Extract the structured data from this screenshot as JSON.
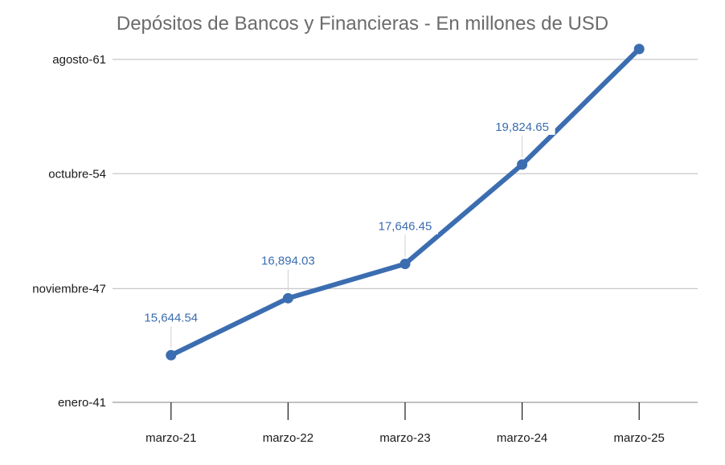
{
  "chart_data": {
    "type": "line",
    "title": "Depósitos de Bancos y Financieras - En millones de USD",
    "categories": [
      "marzo-21",
      "marzo-22",
      "marzo-23",
      "marzo-24",
      "marzo-25"
    ],
    "series": [
      {
        "values": [
          15644.54,
          16894.03,
          17646.45,
          19824.65,
          22358
        ],
        "data_labels": [
          "15,644.54",
          "16,894.03",
          "17,646.45",
          "19,824.65",
          ""
        ]
      }
    ],
    "y_ticks": [
      {
        "value": 14611,
        "label": "enero-41"
      },
      {
        "value": 17104,
        "label": "noviembre-47"
      },
      {
        "value": 19624,
        "label": "octubre-54"
      },
      {
        "value": 22129,
        "label": "agosto-61"
      }
    ],
    "ylim": [
      14611,
      22129
    ],
    "xlabel": "",
    "ylabel": "",
    "grid": true,
    "colors": {
      "line": "#3b6db0",
      "grid": "#c8c8c8",
      "axis": "#9a9a9a",
      "label": "#3b6db0"
    }
  }
}
